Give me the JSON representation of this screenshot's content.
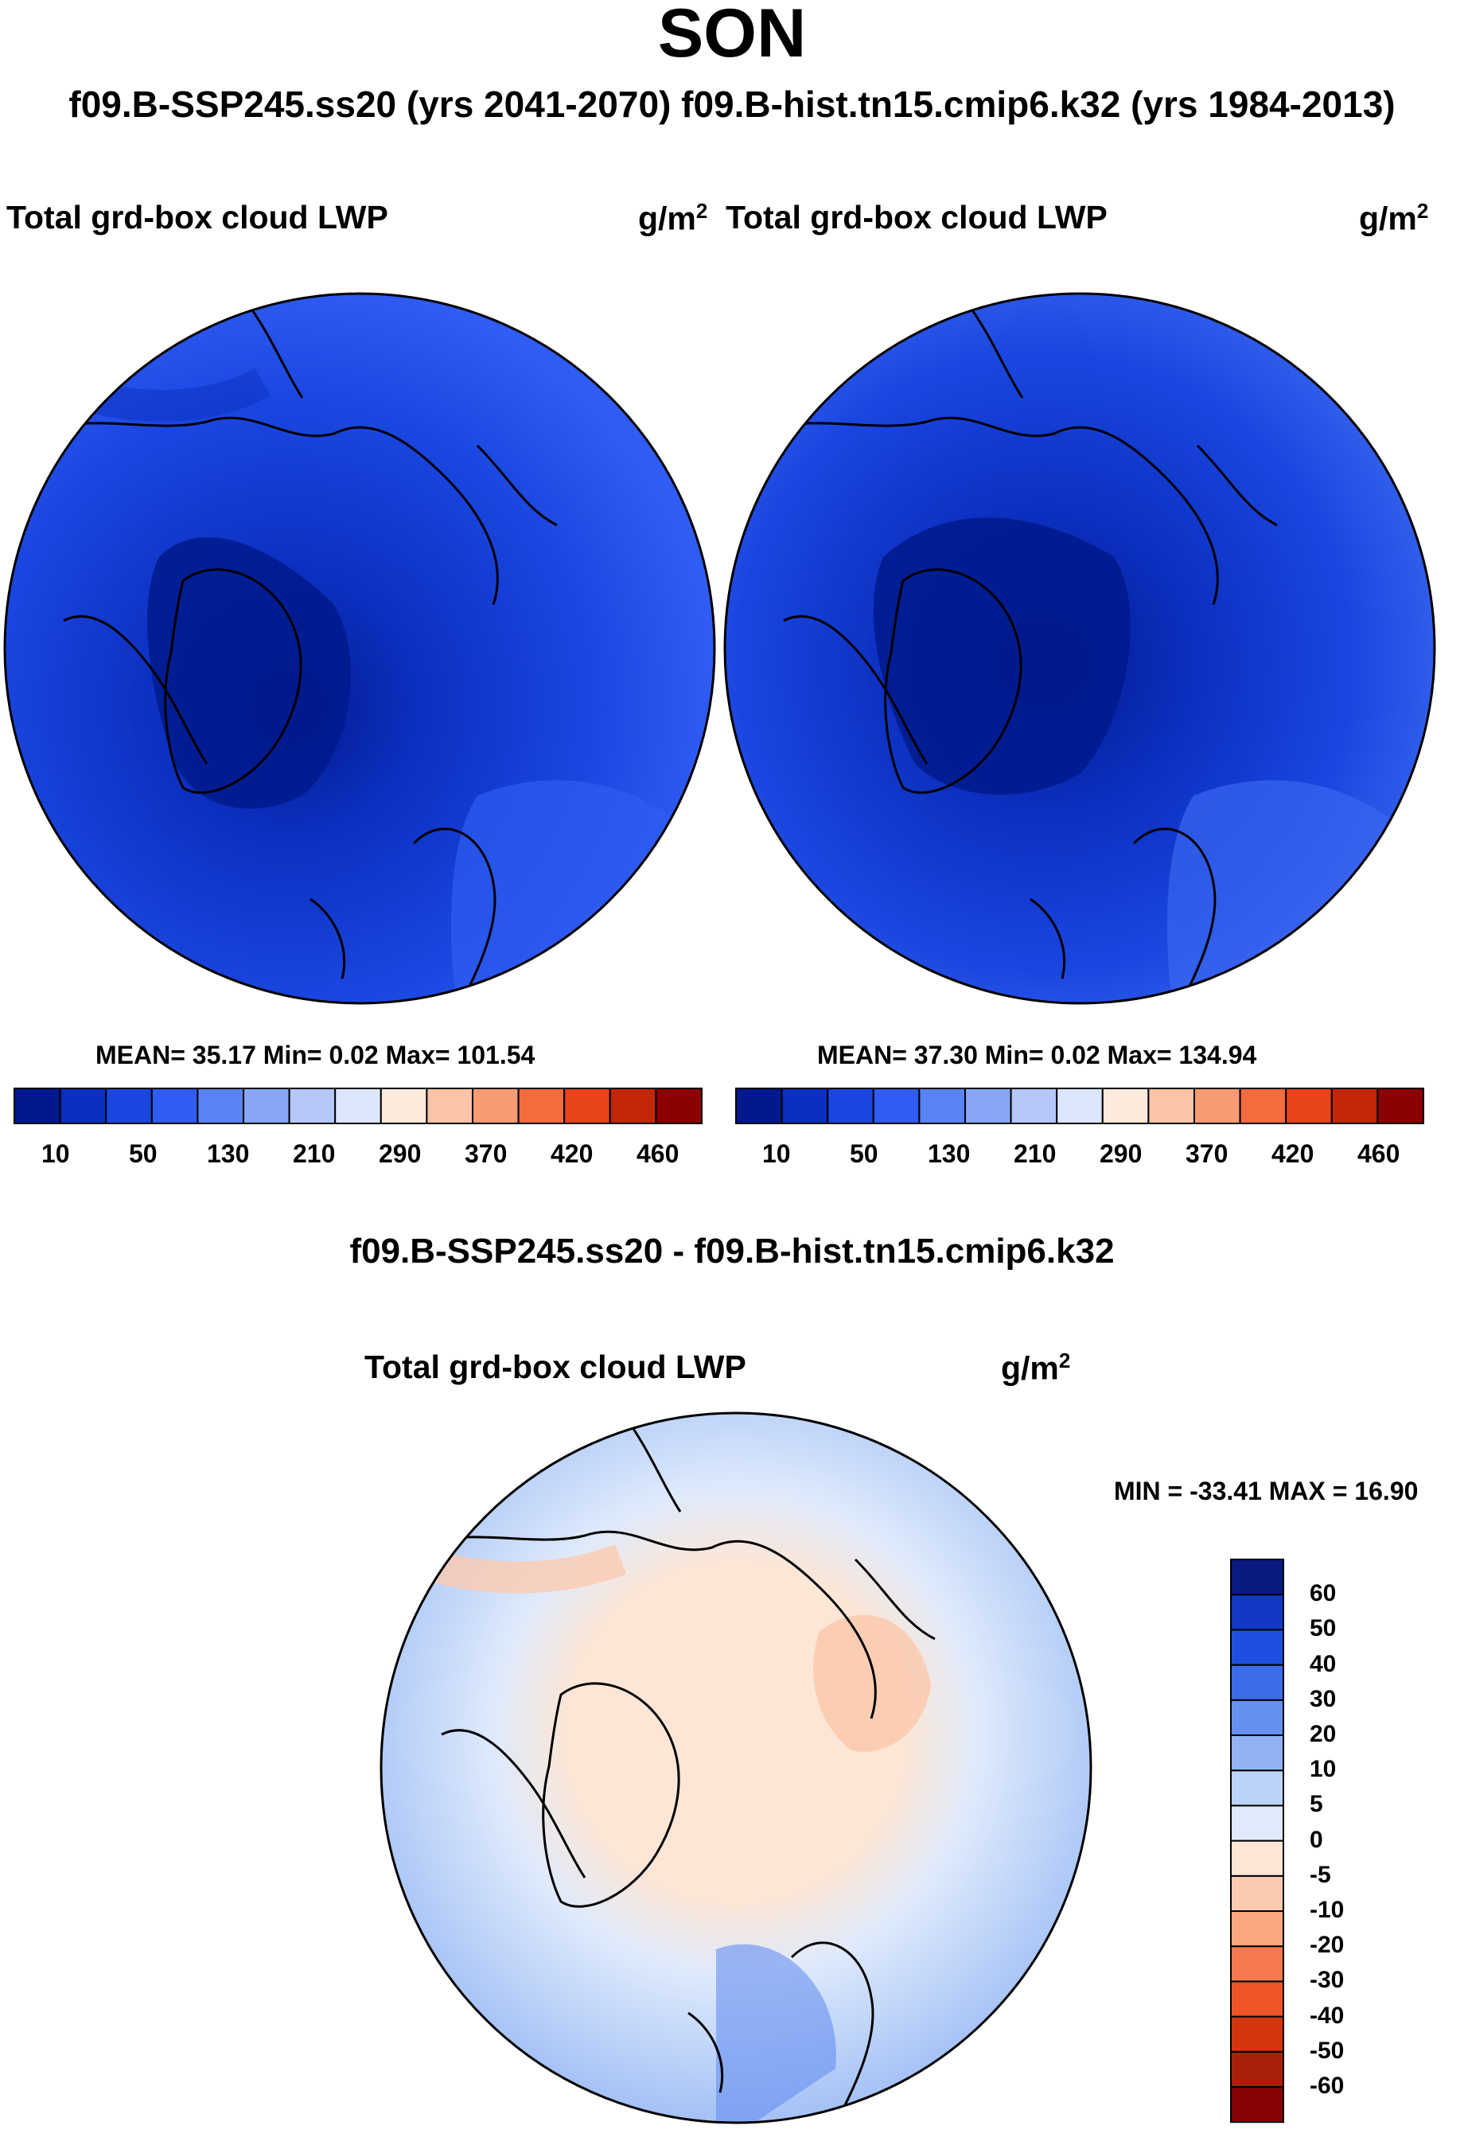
{
  "header": {
    "season": "SON",
    "runs": "f09.B-SSP245.ss20 (yrs 2041-2070)  f09.B-hist.tn15.cmip6.k32 (yrs 1984-2013)"
  },
  "panels": [
    {
      "id": "future",
      "title": "Total grd-box cloud LWP",
      "units_base": "g/m",
      "units_exp": "2",
      "stats": "MEAN=  35.17  Min=   0.02  Max= 101.54"
    },
    {
      "id": "historical",
      "title": "Total grd-box cloud LWP",
      "units_base": "g/m",
      "units_exp": "2",
      "stats": "MEAN=  37.30  Min=   0.02  Max= 134.94"
    }
  ],
  "abs_colorbar": {
    "colors": [
      "#001a8c",
      "#0c2fbf",
      "#1a46e0",
      "#2f5cf2",
      "#5a84f5",
      "#86a6f5",
      "#b4c7f7",
      "#dbe6fb",
      "#fdeadb",
      "#fbc4a7",
      "#f79b73",
      "#f46b3d",
      "#e9431a",
      "#c22708",
      "#8b0000"
    ],
    "labels": [
      "10",
      "50",
      "130",
      "210",
      "290",
      "370",
      "420",
      "460"
    ]
  },
  "diff": {
    "title": "f09.B-SSP245.ss20 - f09.B-hist.tn15.cmip6.k32",
    "panel_title": "Total grd-box cloud LWP",
    "units_base": "g/m",
    "units_exp": "2",
    "minmax": "MIN = -33.41 MAX =  16.90"
  },
  "diff_colorbar": {
    "colors": [
      "#0a1a80",
      "#1238c4",
      "#1f4fe0",
      "#3d6cea",
      "#6690f0",
      "#91b2f4",
      "#bcd2f8",
      "#dfeafc",
      "#fde6d5",
      "#fbcbb0",
      "#f8a781",
      "#f47a4e",
      "#ee5527",
      "#d3360f",
      "#a8200a",
      "#860303"
    ],
    "labels": [
      "60",
      "50",
      "40",
      "30",
      "20",
      "10",
      "5",
      "0",
      "-5",
      "-10",
      "-20",
      "-30",
      "-40",
      "-50",
      "-60"
    ]
  },
  "chart_data": [
    {
      "type": "heatmap",
      "title": "Total grd-box cloud LWP",
      "units": "g/m^2",
      "period": "f09.B-SSP245.ss20 (yrs 2041-2070)",
      "mean": 35.17,
      "min": 0.02,
      "max": 101.54,
      "colorbar_ticks": [
        10,
        50,
        130,
        210,
        290,
        370,
        420,
        460
      ]
    },
    {
      "type": "heatmap",
      "title": "Total grd-box cloud LWP",
      "units": "g/m^2",
      "period": "f09.B-hist.tn15.cmip6.k32 (yrs 1984-2013)",
      "mean": 37.3,
      "min": 0.02,
      "max": 134.94,
      "colorbar_ticks": [
        10,
        50,
        130,
        210,
        290,
        370,
        420,
        460
      ]
    },
    {
      "type": "heatmap",
      "title": "f09.B-SSP245.ss20 - f09.B-hist.tn15.cmip6.k32",
      "units": "g/m^2",
      "min": -33.41,
      "max": 16.9,
      "colorbar_ticks": [
        -60,
        -50,
        -40,
        -30,
        -20,
        -10,
        -5,
        0,
        5,
        10,
        20,
        30,
        40,
        50,
        60
      ]
    }
  ]
}
